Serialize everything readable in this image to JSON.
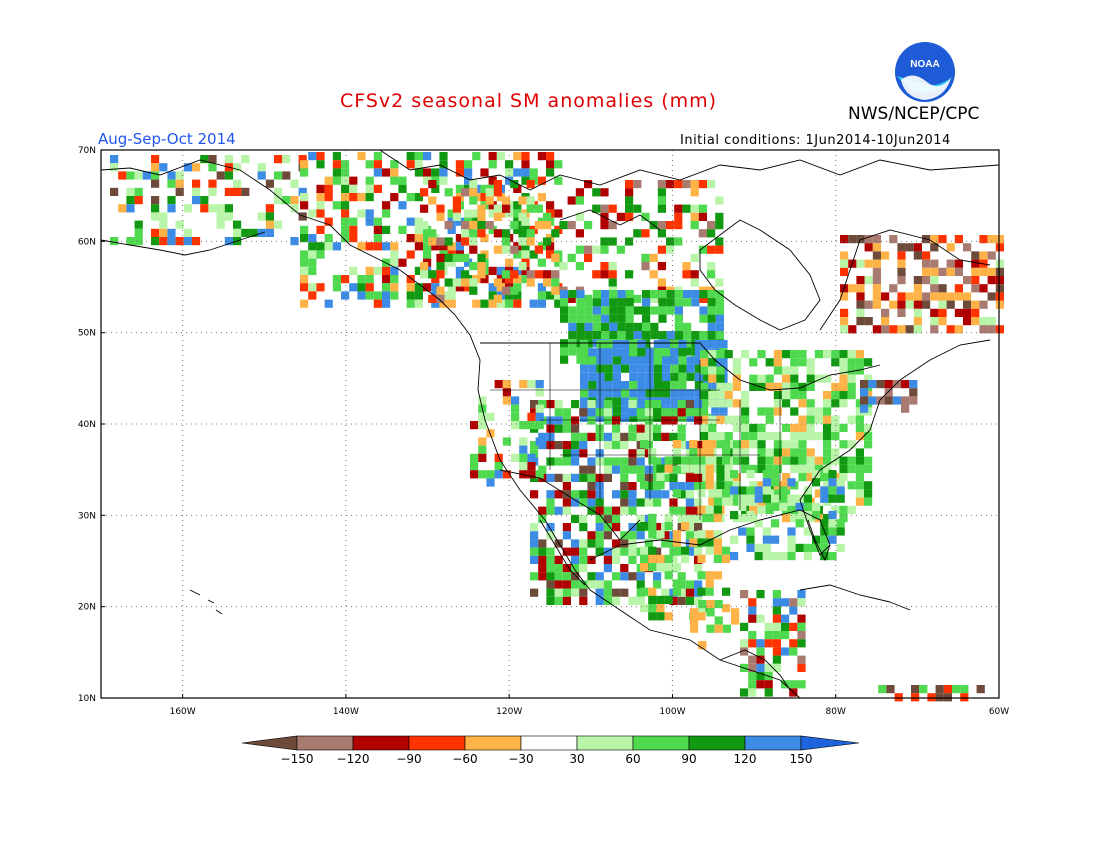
{
  "title": "CFSv2 seasonal SM anomalies (mm)",
  "agency": "NWS/NCEP/CPC",
  "logo_text": "NOAA",
  "season": "Aug-Sep-Oct 2014",
  "initial_conditions": "Initial conditions: 1Jun2014-10Jun2014",
  "map": {
    "lat_labels": [
      "70N",
      "60N",
      "50N",
      "40N",
      "30N",
      "20N",
      "10N"
    ],
    "lon_labels": [
      "160W",
      "140W",
      "120W",
      "100W",
      "80W",
      "60W"
    ],
    "lon_range": [
      -170,
      -60
    ],
    "lat_range": [
      10,
      70
    ],
    "grid": "dotted"
  },
  "colorbar": {
    "labels": [
      "-150",
      "-120",
      "-90",
      "-60",
      "-30",
      "30",
      "60",
      "90",
      "120",
      "150"
    ],
    "colors": [
      "#6e4a3a",
      "#a87a70",
      "#b00000",
      "#ff3300",
      "#ffb347",
      "#ffffff",
      "#b8f5a8",
      "#4fd94f",
      "#119911",
      "#3c8ce6",
      "#1e64dc"
    ]
  },
  "colors": {
    "title": "#e00000",
    "season": "#2255ee",
    "neg150": "#6e4a3a",
    "neg120": "#a87a70",
    "neg90": "#b00000",
    "neg60": "#ff3300",
    "neg30": "#ffb347",
    "pos30": "#b8f5a8",
    "pos60": "#4fd94f",
    "pos90": "#119911",
    "pos120": "#3c8ce6"
  }
}
